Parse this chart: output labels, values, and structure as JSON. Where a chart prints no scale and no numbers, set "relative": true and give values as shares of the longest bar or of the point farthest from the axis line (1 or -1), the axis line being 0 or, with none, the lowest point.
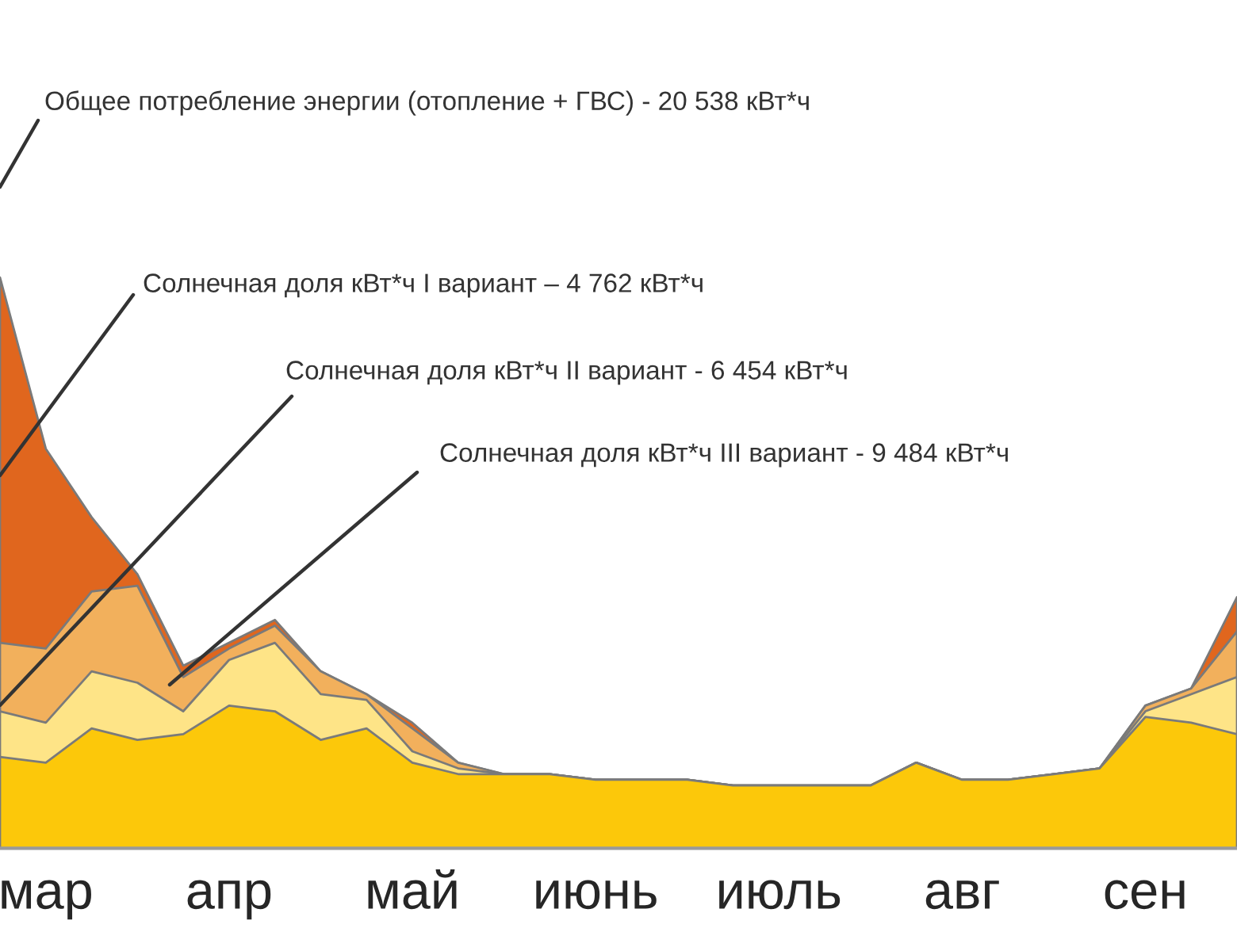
{
  "chart_data": {
    "type": "area",
    "relative": true,
    "categories": [
      null,
      "мар",
      null,
      null,
      null,
      "апр",
      null,
      null,
      null,
      "май",
      null,
      null,
      null,
      "июнь",
      null,
      null,
      null,
      "июль",
      null,
      null,
      null,
      "авг",
      null,
      null,
      null,
      "сен",
      null,
      null
    ],
    "series": [
      {
        "color": "#e0661e",
        "values": [
          1.0,
          0.7,
          0.58,
          0.48,
          0.32,
          0.36,
          0.4,
          0.31,
          0.27,
          0.22,
          0.15,
          0.13,
          0.13,
          0.12,
          0.12,
          0.12,
          0.11,
          0.11,
          0.11,
          0.11,
          0.15,
          0.12,
          0.12,
          0.13,
          0.14,
          0.25,
          0.28,
          0.44
        ]
      },
      {
        "color": "#f2b05c",
        "values": [
          0.36,
          0.35,
          0.45,
          0.46,
          0.3,
          0.35,
          0.39,
          0.31,
          0.27,
          0.21,
          0.15,
          0.13,
          0.13,
          0.12,
          0.12,
          0.12,
          0.11,
          0.11,
          0.11,
          0.11,
          0.15,
          0.12,
          0.12,
          0.13,
          0.14,
          0.25,
          0.28,
          0.38
        ]
      },
      {
        "color": "#fee487",
        "values": [
          0.24,
          0.22,
          0.31,
          0.29,
          0.24,
          0.33,
          0.36,
          0.27,
          0.26,
          0.17,
          0.14,
          0.13,
          0.13,
          0.12,
          0.12,
          0.12,
          0.11,
          0.11,
          0.11,
          0.11,
          0.15,
          0.12,
          0.12,
          0.13,
          0.14,
          0.24,
          0.27,
          0.3
        ]
      },
      {
        "color": "#fcc80a",
        "values": [
          0.16,
          0.15,
          0.21,
          0.19,
          0.2,
          0.25,
          0.24,
          0.19,
          0.21,
          0.15,
          0.13,
          0.13,
          0.13,
          0.12,
          0.12,
          0.12,
          0.11,
          0.11,
          0.11,
          0.11,
          0.15,
          0.12,
          0.12,
          0.13,
          0.14,
          0.23,
          0.22,
          0.2
        ]
      }
    ],
    "annotations": [
      "Общее потребление энергии (отопление + ГВС) - 20 538 кВт*ч",
      "Солнечная доля кВт*ч I вариант – 4 762 кВт*ч",
      "Солнечная доля кВт*ч II вариант - 6 454 кВт*ч",
      "Солнечная доля кВт*ч III вариант - 9 484 кВт*ч"
    ],
    "grid": false,
    "legend": false
  }
}
